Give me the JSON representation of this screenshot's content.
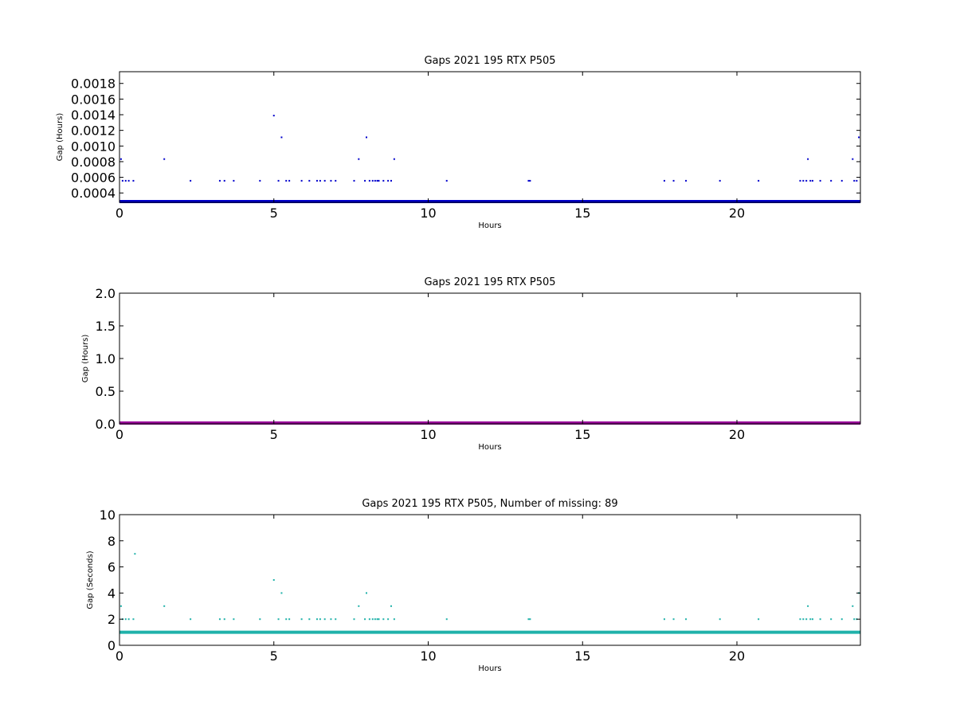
{
  "chart_data": [
    {
      "type": "scatter",
      "title": "Gaps 2021 195 RTX  P505",
      "xlabel": "Hours",
      "ylabel": "Gap (Hours)",
      "xlim": [
        0,
        24
      ],
      "ylim": [
        0.00028,
        0.00195
      ],
      "xticks": [
        0,
        5,
        10,
        15,
        20
      ],
      "yticks": [
        0.0004,
        0.0006,
        0.0008,
        0.001,
        0.0012,
        0.0014,
        0.0016,
        0.0018
      ],
      "ytick_labels": [
        "0.0004",
        "0.0006",
        "0.0008",
        "0.0010",
        "0.0012",
        "0.0014",
        "0.0016",
        "0.0018"
      ],
      "grid": false,
      "color": "#0000cc",
      "baseline": {
        "y": 0.000278,
        "x_start": 0,
        "x_end": 24
      },
      "series": [
        {
          "x": [
            0.05,
            0.1,
            0.2,
            0.3,
            0.45,
            1.45,
            2.3,
            3.25,
            3.4,
            3.7,
            4.55,
            5.0,
            5.15,
            5.25,
            5.4,
            5.5,
            5.9,
            6.15,
            6.4,
            6.5,
            6.65,
            6.85,
            7.0,
            7.6,
            7.75,
            7.95,
            8.0,
            8.1,
            8.2,
            8.28,
            8.35,
            8.4,
            8.55,
            8.7,
            8.8,
            8.9,
            10.6,
            13.25,
            13.3,
            17.65,
            17.95,
            18.35,
            19.45,
            20.7,
            22.05,
            22.15,
            22.25,
            22.3,
            22.38,
            22.45,
            22.7,
            23.05,
            23.4,
            23.75,
            23.8,
            23.88,
            23.95
          ],
          "y": [
            0.000833,
            0.000556,
            0.000556,
            0.000556,
            0.000556,
            0.000833,
            0.000556,
            0.000556,
            0.000556,
            0.000556,
            0.000556,
            0.001389,
            0.000556,
            0.001111,
            0.000556,
            0.000556,
            0.000556,
            0.000556,
            0.000556,
            0.000556,
            0.000556,
            0.000556,
            0.000556,
            0.000556,
            0.000833,
            0.000556,
            0.001111,
            0.000556,
            0.000556,
            0.000556,
            0.000556,
            0.000556,
            0.000556,
            0.000556,
            0.000556,
            0.000833,
            0.000556,
            0.000556,
            0.000556,
            0.000556,
            0.000556,
            0.000556,
            0.000556,
            0.000556,
            0.000556,
            0.000556,
            0.000556,
            0.000833,
            0.000556,
            0.000556,
            0.000556,
            0.000556,
            0.000556,
            0.000833,
            0.000556,
            0.000556,
            0.001111
          ]
        }
      ]
    },
    {
      "type": "line",
      "title": "Gaps 2021 195 RTX  P505",
      "xlabel": "Hours",
      "ylabel": "Gap (Hours)",
      "xlim": [
        0,
        24
      ],
      "ylim": [
        0,
        2
      ],
      "xticks": [
        0,
        5,
        10,
        15,
        20
      ],
      "yticks": [
        0,
        0.5,
        1,
        1.5,
        2
      ],
      "ytick_labels": [
        "0.0",
        "0.5",
        "1.0",
        "1.5",
        "2.0"
      ],
      "grid": false,
      "color": "#990099",
      "baseline": {
        "y": 0.0,
        "x_start": 0,
        "x_end": 24
      },
      "series": []
    },
    {
      "type": "scatter",
      "title": "Gaps 2021 195 RTX  P505, Number of missing: 89",
      "xlabel": "Hours",
      "ylabel": "Gap (Seconds)",
      "xlim": [
        0,
        24
      ],
      "ylim": [
        0,
        10
      ],
      "xticks": [
        0,
        5,
        10,
        15,
        20
      ],
      "yticks": [
        0,
        2,
        4,
        6,
        8,
        10
      ],
      "ytick_labels": [
        "0",
        "2",
        "4",
        "6",
        "8",
        "10"
      ],
      "grid": false,
      "color": "#20b2aa",
      "baseline": {
        "y": 1,
        "x_start": 0,
        "x_end": 24
      },
      "series": [
        {
          "x": [
            0.05,
            0.1,
            0.2,
            0.3,
            0.45,
            0.5,
            1.45,
            2.3,
            3.25,
            3.4,
            3.7,
            4.55,
            5.0,
            5.15,
            5.25,
            5.4,
            5.5,
            5.9,
            6.15,
            6.4,
            6.5,
            6.65,
            6.85,
            7.0,
            7.6,
            7.75,
            7.95,
            8.0,
            8.1,
            8.2,
            8.28,
            8.35,
            8.4,
            8.55,
            8.7,
            8.8,
            8.9,
            10.6,
            13.25,
            13.3,
            17.65,
            17.95,
            18.35,
            19.45,
            20.7,
            22.05,
            22.15,
            22.25,
            22.3,
            22.38,
            22.45,
            22.7,
            23.05,
            23.4,
            23.75,
            23.8,
            23.88,
            23.95
          ],
          "y": [
            3,
            2,
            2,
            2,
            2,
            7,
            3,
            2,
            2,
            2,
            2,
            2,
            5,
            2,
            4,
            2,
            2,
            2,
            2,
            2,
            2,
            2,
            2,
            2,
            2,
            3,
            2,
            4,
            2,
            2,
            2,
            2,
            2,
            2,
            2,
            3,
            2,
            2,
            2,
            2,
            2,
            2,
            2,
            2,
            2,
            2,
            2,
            2,
            3,
            2,
            2,
            2,
            2,
            2,
            3,
            2,
            2,
            4
          ]
        }
      ]
    }
  ]
}
